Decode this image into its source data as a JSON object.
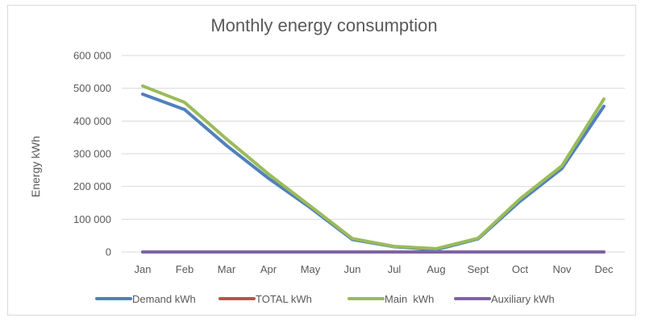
{
  "chart_data": {
    "type": "line",
    "title": "Monthly energy consumption",
    "xlabel": "",
    "ylabel": "Energy kWh",
    "categories": [
      "Jan",
      "Feb",
      "Mar",
      "Apr",
      "May",
      "Jun",
      "Jul",
      "Aug",
      "Sept",
      "Oct",
      "Nov",
      "Dec"
    ],
    "ylim": [
      0,
      600000
    ],
    "yticks": [
      0,
      100000,
      200000,
      300000,
      400000,
      500000,
      600000
    ],
    "ytick_labels": [
      "0",
      "100 000",
      "200 000",
      "300 000",
      "400 000",
      "500 000",
      "600 000"
    ],
    "grid": true,
    "legend_position": "bottom",
    "series": [
      {
        "name": "Demand kWh",
        "color": "#4f81bd",
        "values": [
          482000,
          435000,
          325000,
          225000,
          135000,
          38000,
          16000,
          7000,
          40000,
          155000,
          255000,
          445000
        ]
      },
      {
        "name": "TOTAL kWh",
        "color": "#c0504d",
        "values": [
          0,
          0,
          0,
          0,
          0,
          0,
          0,
          0,
          0,
          0,
          0,
          0
        ]
      },
      {
        "name": "Main  kWh",
        "color": "#9bbb59",
        "values": [
          507000,
          457000,
          345000,
          238000,
          140000,
          41000,
          17000,
          10000,
          42000,
          162000,
          263000,
          467000
        ]
      },
      {
        "name": "Auxiliary kWh",
        "color": "#8064a2",
        "values": [
          0,
          0,
          0,
          0,
          0,
          0,
          0,
          0,
          0,
          0,
          0,
          0
        ]
      }
    ]
  }
}
